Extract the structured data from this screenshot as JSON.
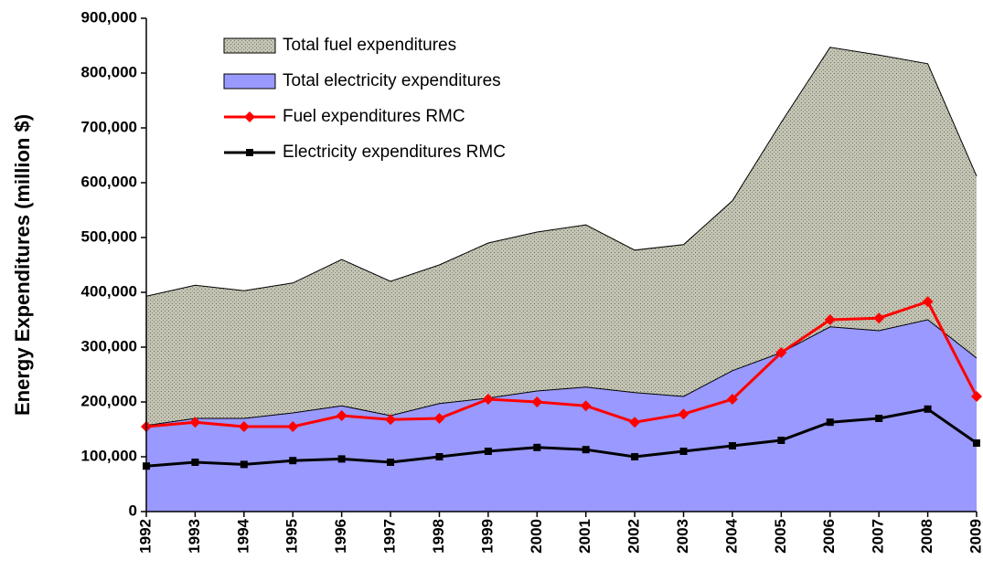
{
  "chart_data": {
    "type": "line",
    "ylabel": "Energy Expenditures (million $)",
    "categories": [
      "1992",
      "1993",
      "1994",
      "1995",
      "1996",
      "1997",
      "1998",
      "1999",
      "2000",
      "2001",
      "2002",
      "2003",
      "2004",
      "2005",
      "2006",
      "2007",
      "2008",
      "2009"
    ],
    "series": [
      {
        "name": "Total fuel expenditures",
        "style": "area",
        "color": "#c4c4b4",
        "values": [
          393000,
          413000,
          403000,
          417000,
          460000,
          420000,
          450000,
          490000,
          510000,
          523000,
          477000,
          487000,
          567000,
          710000,
          847000,
          833000,
          817000,
          612000
        ]
      },
      {
        "name": "Total electricity expenditures",
        "style": "area",
        "color": "#9999ff",
        "values": [
          157000,
          170000,
          170000,
          180000,
          193000,
          175000,
          197000,
          207000,
          220000,
          227000,
          217000,
          210000,
          257000,
          290000,
          337000,
          330000,
          350000,
          280000
        ]
      },
      {
        "name": "Fuel expenditures RMC",
        "style": "line",
        "marker": "diamond",
        "color": "#ff0000",
        "values": [
          155000,
          163000,
          155000,
          155000,
          175000,
          168000,
          170000,
          205000,
          200000,
          193000,
          163000,
          178000,
          205000,
          290000,
          350000,
          353000,
          383000,
          210000
        ]
      },
      {
        "name": "Electricity expenditures RMC",
        "style": "line",
        "marker": "square",
        "color": "#000000",
        "values": [
          83000,
          90000,
          86000,
          93000,
          96000,
          90000,
          100000,
          110000,
          117000,
          113000,
          100000,
          110000,
          120000,
          130000,
          163000,
          170000,
          187000,
          125000
        ]
      }
    ],
    "ylim": [
      0,
      900000
    ],
    "yticks": [
      0,
      {
        "value": 100000,
        "label": "100,000"
      },
      {
        "value": 200000,
        "label": "200,000"
      },
      {
        "value": 300000,
        "label": "300,000"
      },
      {
        "value": 400000,
        "label": "400,000"
      },
      {
        "value": 500000,
        "label": "500,000"
      },
      {
        "value": 600000,
        "label": "600,000"
      },
      {
        "value": 700000,
        "label": "700,000"
      },
      {
        "value": 800000,
        "label": "800,000"
      },
      {
        "value": 900000,
        "label": "900,000"
      }
    ],
    "legend": "upper-left"
  }
}
